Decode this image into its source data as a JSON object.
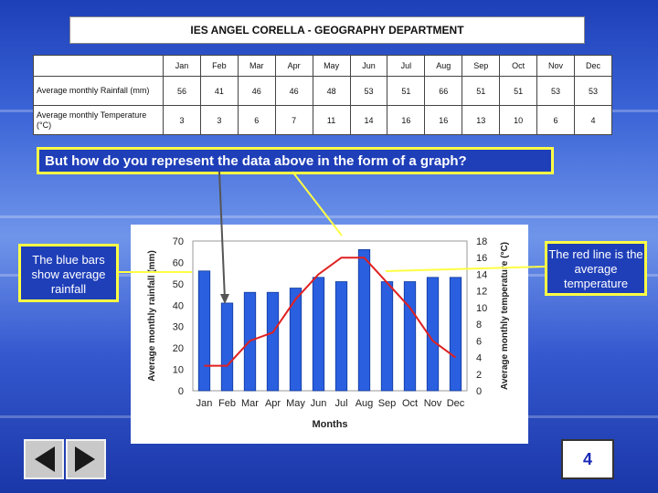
{
  "header": {
    "title": "IES ANGEL CORELLA -  GEOGRAPHY DEPARTMENT"
  },
  "table": {
    "months": [
      "Jan",
      "Feb",
      "Mar",
      "Apr",
      "May",
      "Jun",
      "Jul",
      "Aug",
      "Sep",
      "Oct",
      "Nov",
      "Dec"
    ],
    "rows": [
      {
        "label": "Average monthly Rainfall (mm)",
        "values": [
          "56",
          "41",
          "46",
          "46",
          "48",
          "53",
          "51",
          "66",
          "51",
          "51",
          "53",
          "53"
        ]
      },
      {
        "label": "Average monthly Temperature (°C)",
        "values": [
          "3",
          "3",
          "6",
          "7",
          "11",
          "14",
          "16",
          "16",
          "13",
          "10",
          "6",
          "4"
        ]
      }
    ]
  },
  "question": "But how do you represent the data above in the form of a graph?",
  "callouts": {
    "bars": "The blue bars show average rainfall",
    "line": "The red line is the average temperature"
  },
  "page_number": "4",
  "colors": {
    "bar": "#2a5fe0",
    "line": "#e02020",
    "accent": "#ffff44"
  },
  "chart_data": {
    "type": "bar",
    "categories": [
      "Jan",
      "Feb",
      "Mar",
      "Apr",
      "May",
      "Jun",
      "Jul",
      "Aug",
      "Sep",
      "Oct",
      "Nov",
      "Dec"
    ],
    "series": [
      {
        "name": "Average monthly rainfall (mm)",
        "type": "bar",
        "axis": "left",
        "values": [
          56,
          41,
          46,
          46,
          48,
          53,
          51,
          66,
          51,
          51,
          53,
          53
        ]
      },
      {
        "name": "Average monthly temperature (°C)",
        "type": "line",
        "axis": "right",
        "values": [
          3,
          3,
          6,
          7,
          11,
          14,
          16,
          16,
          13,
          10,
          6,
          4
        ]
      }
    ],
    "xlabel": "Months",
    "ylabel": "Average monthly rainfall (mm)",
    "y2label": "Average monthly temperature (°C)",
    "ylim": [
      0,
      70
    ],
    "y2lim": [
      0,
      18
    ],
    "yticks": [
      0,
      10,
      20,
      30,
      40,
      50,
      60,
      70
    ],
    "y2ticks": [
      0,
      2,
      4,
      6,
      8,
      10,
      12,
      14,
      16,
      18
    ]
  }
}
